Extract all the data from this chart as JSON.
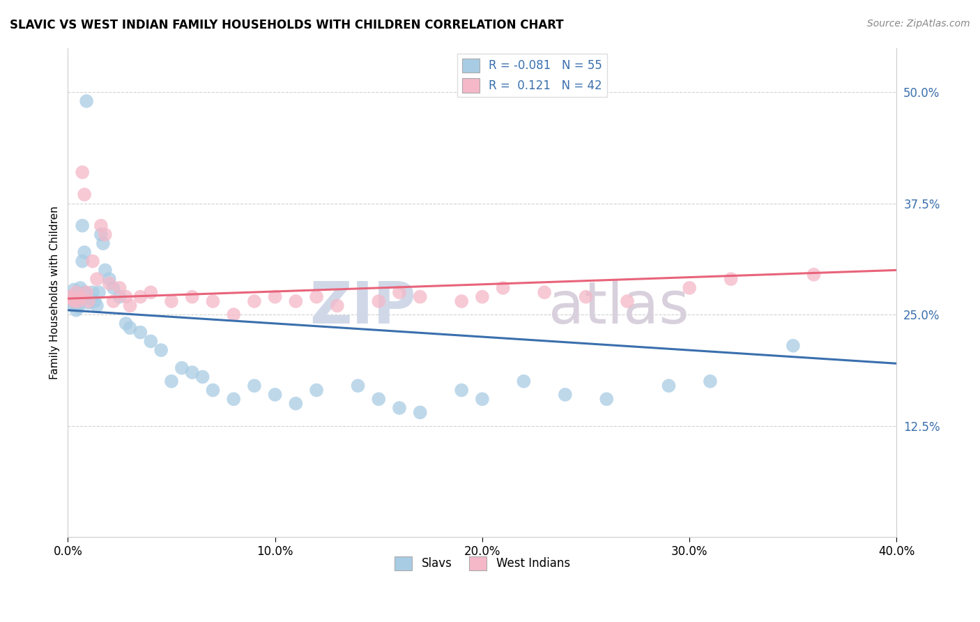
{
  "title": "SLAVIC VS WEST INDIAN FAMILY HOUSEHOLDS WITH CHILDREN CORRELATION CHART",
  "source": "Source: ZipAtlas.com",
  "ylabel": "Family Households with Children",
  "y_ticks": [
    0.125,
    0.25,
    0.375,
    0.5
  ],
  "y_tick_labels": [
    "12.5%",
    "25.0%",
    "37.5%",
    "50.0%"
  ],
  "x_range": [
    0.0,
    0.4
  ],
  "y_range": [
    0.0,
    0.55
  ],
  "slavs_R": -0.081,
  "slavs_N": 55,
  "west_indians_R": 0.121,
  "west_indians_N": 42,
  "slav_color": "#a8cce4",
  "west_indian_color": "#f4b8c8",
  "slav_line_color": "#3a6fad",
  "west_indian_line_color": "#e8637a",
  "watermark_zip": "ZIP",
  "watermark_atlas": "atlas",
  "legend_label_slavs": "Slavs",
  "legend_label_west_indians": "West Indians",
  "slavs_x": [
    0.001,
    0.002,
    0.003,
    0.003,
    0.004,
    0.004,
    0.005,
    0.005,
    0.006,
    0.006,
    0.007,
    0.007,
    0.008,
    0.008,
    0.009,
    0.01,
    0.01,
    0.011,
    0.012,
    0.013,
    0.014,
    0.015,
    0.016,
    0.017,
    0.018,
    0.02,
    0.022,
    0.025,
    0.028,
    0.03,
    0.035,
    0.04,
    0.045,
    0.05,
    0.055,
    0.06,
    0.065,
    0.07,
    0.08,
    0.09,
    0.1,
    0.11,
    0.12,
    0.14,
    0.15,
    0.16,
    0.17,
    0.19,
    0.2,
    0.22,
    0.24,
    0.26,
    0.29,
    0.31,
    0.35
  ],
  "slavs_y": [
    0.27,
    0.265,
    0.278,
    0.26,
    0.272,
    0.255,
    0.268,
    0.258,
    0.28,
    0.265,
    0.35,
    0.31,
    0.32,
    0.275,
    0.49,
    0.27,
    0.263,
    0.268,
    0.275,
    0.265,
    0.26,
    0.275,
    0.34,
    0.33,
    0.3,
    0.29,
    0.28,
    0.27,
    0.24,
    0.235,
    0.23,
    0.22,
    0.21,
    0.175,
    0.19,
    0.185,
    0.18,
    0.165,
    0.155,
    0.17,
    0.16,
    0.15,
    0.165,
    0.17,
    0.155,
    0.145,
    0.14,
    0.165,
    0.155,
    0.175,
    0.16,
    0.155,
    0.17,
    0.175,
    0.215
  ],
  "west_indians_x": [
    0.001,
    0.002,
    0.003,
    0.004,
    0.005,
    0.006,
    0.007,
    0.008,
    0.009,
    0.01,
    0.012,
    0.014,
    0.016,
    0.018,
    0.02,
    0.022,
    0.025,
    0.028,
    0.03,
    0.035,
    0.04,
    0.05,
    0.06,
    0.07,
    0.08,
    0.09,
    0.1,
    0.11,
    0.12,
    0.13,
    0.15,
    0.16,
    0.17,
    0.19,
    0.2,
    0.21,
    0.23,
    0.25,
    0.27,
    0.3,
    0.32,
    0.36
  ],
  "west_indians_y": [
    0.27,
    0.268,
    0.265,
    0.275,
    0.265,
    0.27,
    0.41,
    0.385,
    0.275,
    0.265,
    0.31,
    0.29,
    0.35,
    0.34,
    0.285,
    0.265,
    0.28,
    0.27,
    0.26,
    0.27,
    0.275,
    0.265,
    0.27,
    0.265,
    0.25,
    0.265,
    0.27,
    0.265,
    0.27,
    0.26,
    0.265,
    0.275,
    0.27,
    0.265,
    0.27,
    0.28,
    0.275,
    0.27,
    0.265,
    0.28,
    0.29,
    0.295
  ],
  "slav_trendline_start": 0.255,
  "slav_trendline_end": 0.195,
  "wi_trendline_start": 0.268,
  "wi_trendline_end": 0.3
}
